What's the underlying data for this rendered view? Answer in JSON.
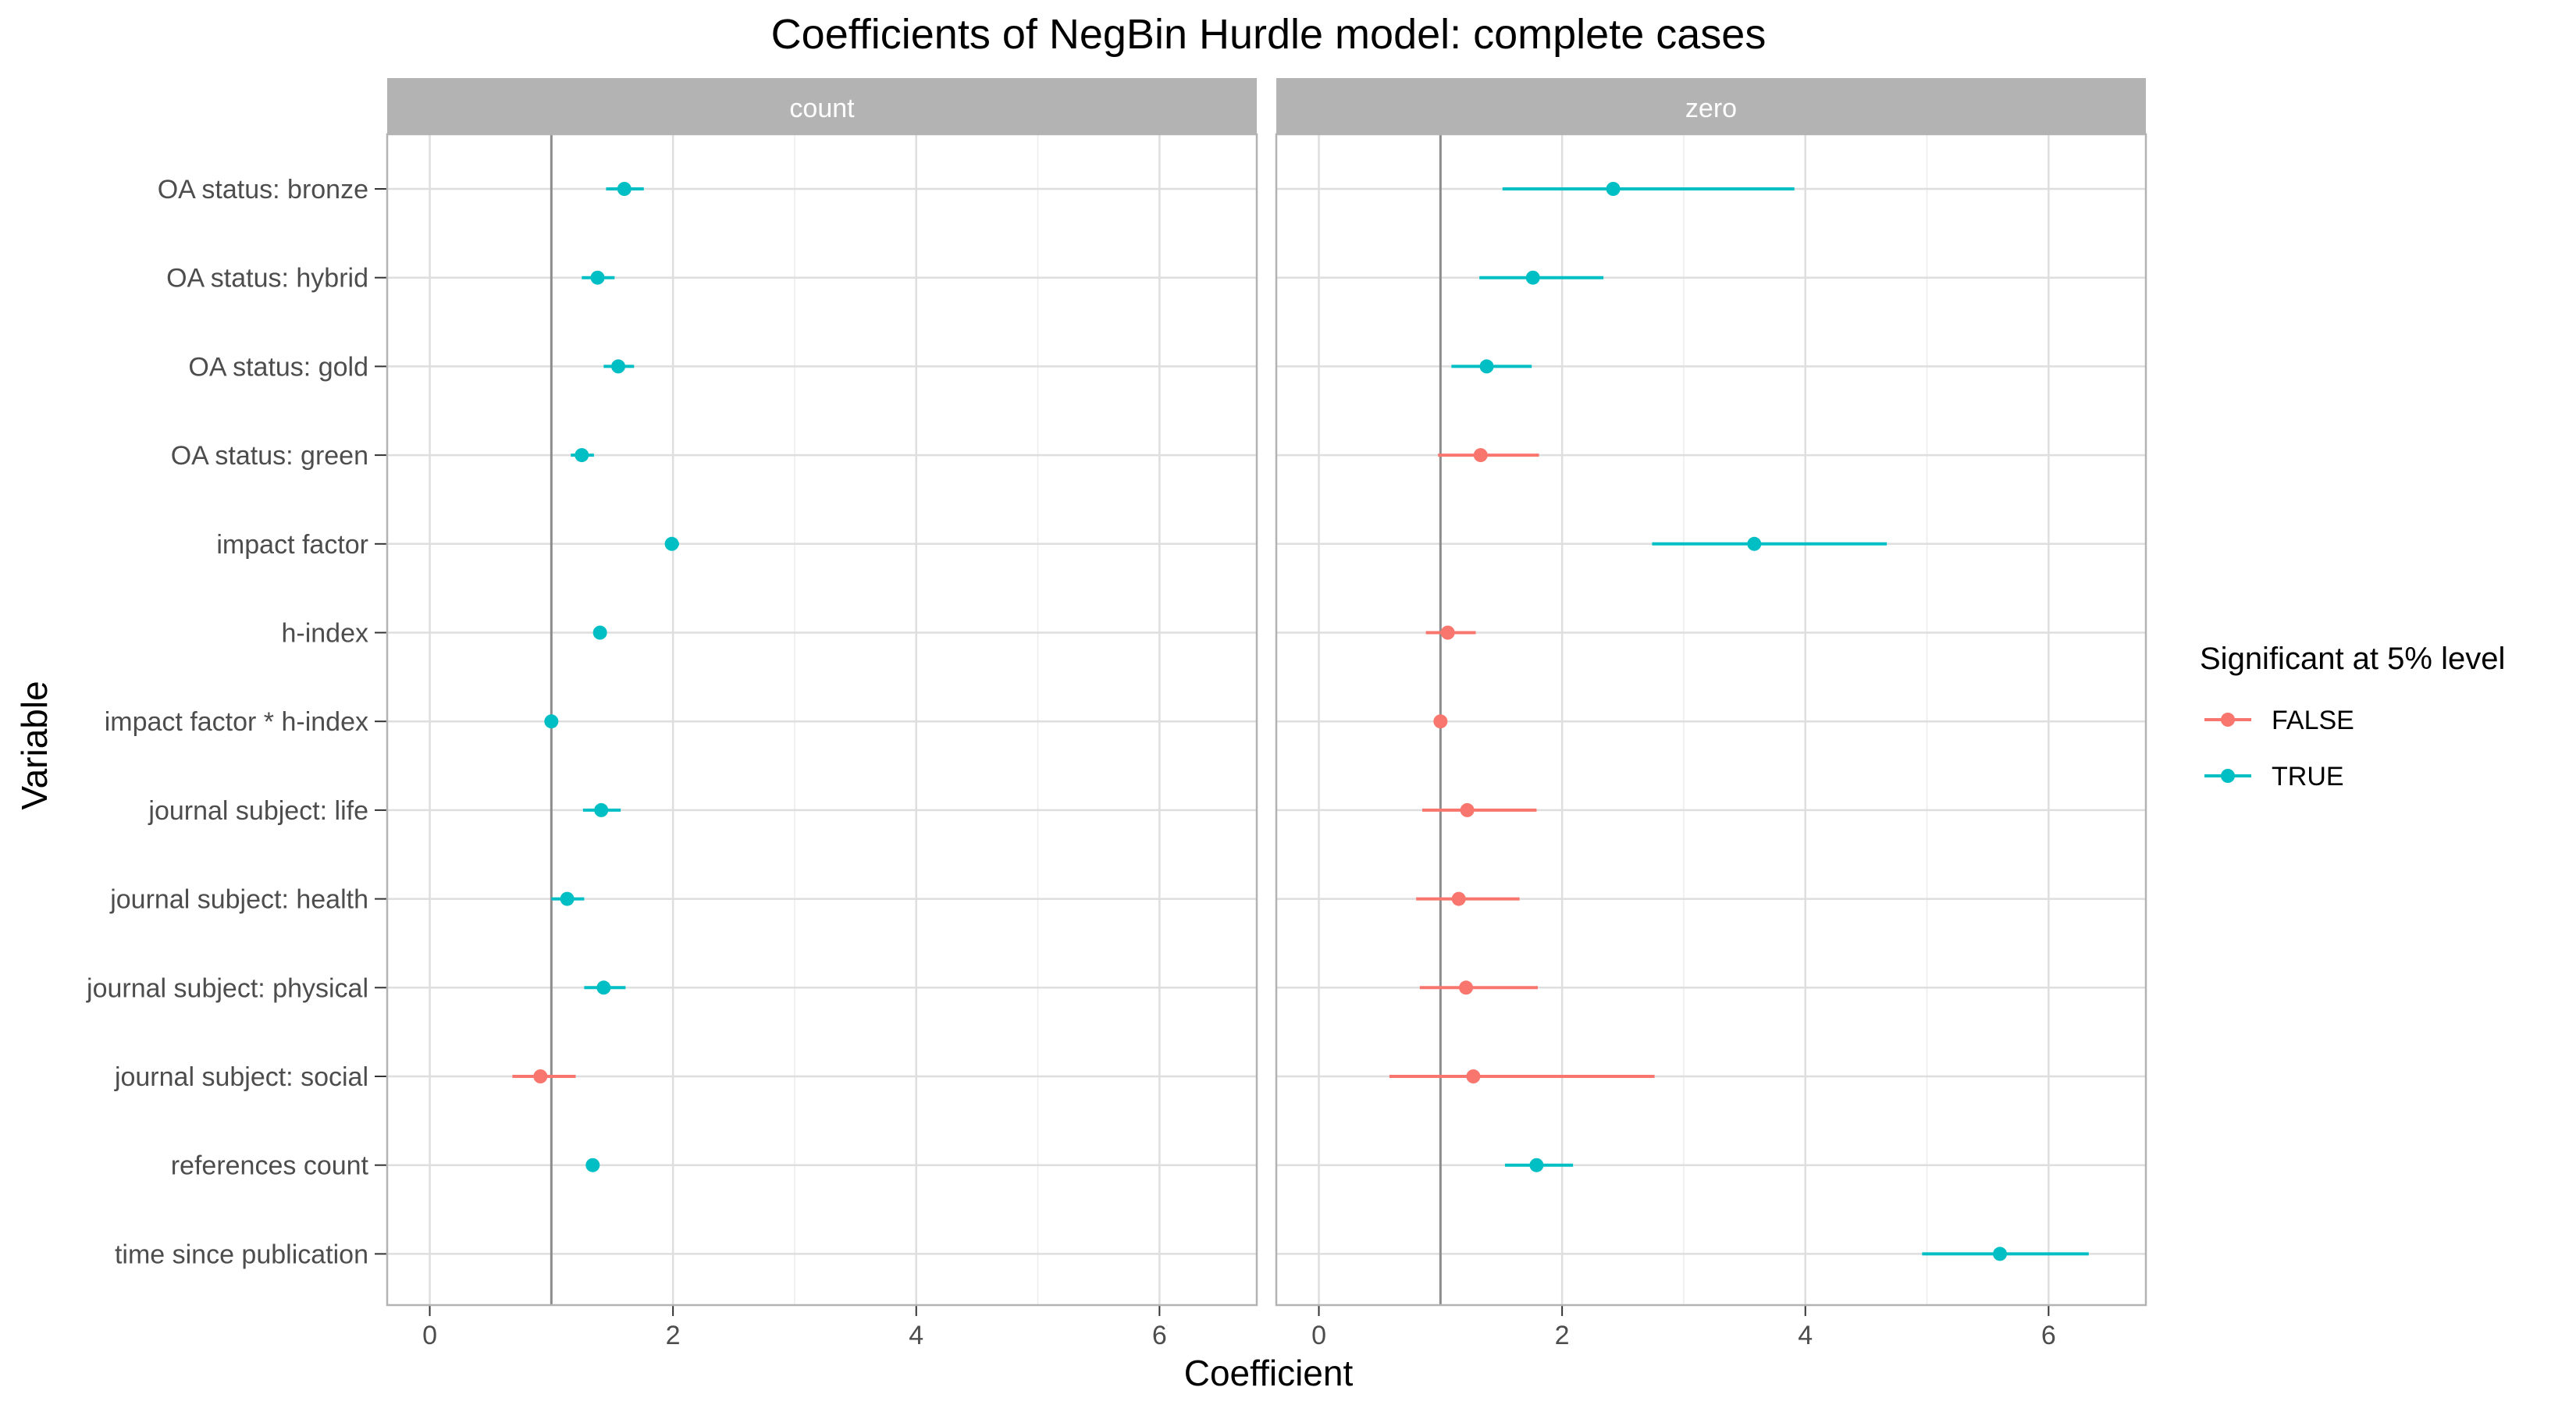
{
  "chart_data": {
    "type": "scatter",
    "title": "Coefficients of NegBin Hurdle model: complete cases",
    "xlabel": "Coefficient",
    "ylabel": "Variable",
    "xlim": [
      -0.35,
      6.8
    ],
    "xticks": [
      0,
      2,
      4,
      6
    ],
    "reference_line_x": 1,
    "grid": true,
    "legend_position": "right",
    "legend": {
      "title": "Significant at 5% level",
      "entries": [
        {
          "key": "FALSE",
          "label": "FALSE",
          "color": "#F8766D"
        },
        {
          "key": "TRUE",
          "label": "TRUE",
          "color": "#00BFC4"
        }
      ]
    },
    "variables": [
      "OA status: bronze",
      "OA status: hybrid",
      "OA status: gold",
      "OA status: green",
      "impact factor",
      "h-index",
      "impact factor * h-index",
      "journal subject: life",
      "journal subject: health",
      "journal subject: physical",
      "journal subject: social",
      "references count",
      "time since publication"
    ],
    "panels": [
      {
        "name": "count",
        "points": [
          {
            "variable": "OA status: bronze",
            "estimate": 1.6,
            "lower": 1.45,
            "upper": 1.76,
            "significant": "TRUE"
          },
          {
            "variable": "OA status: hybrid",
            "estimate": 1.38,
            "lower": 1.25,
            "upper": 1.52,
            "significant": "TRUE"
          },
          {
            "variable": "OA status: gold",
            "estimate": 1.55,
            "lower": 1.43,
            "upper": 1.68,
            "significant": "TRUE"
          },
          {
            "variable": "OA status: green",
            "estimate": 1.25,
            "lower": 1.16,
            "upper": 1.35,
            "significant": "TRUE"
          },
          {
            "variable": "impact factor",
            "estimate": 1.99,
            "lower": 1.94,
            "upper": 2.05,
            "significant": "TRUE"
          },
          {
            "variable": "h-index",
            "estimate": 1.4,
            "lower": 1.37,
            "upper": 1.43,
            "significant": "TRUE"
          },
          {
            "variable": "impact factor * h-index",
            "estimate": 1.0,
            "lower": 0.99,
            "upper": 1.01,
            "significant": "TRUE"
          },
          {
            "variable": "journal subject: life",
            "estimate": 1.41,
            "lower": 1.26,
            "upper": 1.57,
            "significant": "TRUE"
          },
          {
            "variable": "journal subject: health",
            "estimate": 1.13,
            "lower": 1.0,
            "upper": 1.27,
            "significant": "TRUE"
          },
          {
            "variable": "journal subject: physical",
            "estimate": 1.43,
            "lower": 1.27,
            "upper": 1.61,
            "significant": "TRUE"
          },
          {
            "variable": "journal subject: social",
            "estimate": 0.91,
            "lower": 0.68,
            "upper": 1.2,
            "significant": "FALSE"
          },
          {
            "variable": "references count",
            "estimate": 1.34,
            "lower": 1.31,
            "upper": 1.37,
            "significant": "TRUE"
          },
          {
            "variable": "time since publication",
            "estimate": null,
            "lower": null,
            "upper": null,
            "significant": null
          }
        ]
      },
      {
        "name": "zero",
        "points": [
          {
            "variable": "OA status: bronze",
            "estimate": 2.42,
            "lower": 1.51,
            "upper": 3.91,
            "significant": "TRUE"
          },
          {
            "variable": "OA status: hybrid",
            "estimate": 1.76,
            "lower": 1.32,
            "upper": 2.34,
            "significant": "TRUE"
          },
          {
            "variable": "OA status: gold",
            "estimate": 1.38,
            "lower": 1.09,
            "upper": 1.75,
            "significant": "TRUE"
          },
          {
            "variable": "OA status: green",
            "estimate": 1.33,
            "lower": 0.98,
            "upper": 1.81,
            "significant": "FALSE"
          },
          {
            "variable": "impact factor",
            "estimate": 3.58,
            "lower": 2.74,
            "upper": 4.67,
            "significant": "TRUE"
          },
          {
            "variable": "h-index",
            "estimate": 1.06,
            "lower": 0.88,
            "upper": 1.29,
            "significant": "FALSE"
          },
          {
            "variable": "impact factor * h-index",
            "estimate": 1.0,
            "lower": 0.99,
            "upper": 1.01,
            "significant": "FALSE"
          },
          {
            "variable": "journal subject: life",
            "estimate": 1.22,
            "lower": 0.85,
            "upper": 1.79,
            "significant": "FALSE"
          },
          {
            "variable": "journal subject: health",
            "estimate": 1.15,
            "lower": 0.8,
            "upper": 1.65,
            "significant": "FALSE"
          },
          {
            "variable": "journal subject: physical",
            "estimate": 1.21,
            "lower": 0.83,
            "upper": 1.8,
            "significant": "FALSE"
          },
          {
            "variable": "journal subject: social",
            "estimate": 1.27,
            "lower": 0.58,
            "upper": 2.76,
            "significant": "FALSE"
          },
          {
            "variable": "references count",
            "estimate": 1.79,
            "lower": 1.53,
            "upper": 2.09,
            "significant": "TRUE"
          },
          {
            "variable": "time since publication",
            "estimate": 5.6,
            "lower": 4.96,
            "upper": 6.33,
            "significant": "TRUE"
          }
        ]
      }
    ]
  }
}
